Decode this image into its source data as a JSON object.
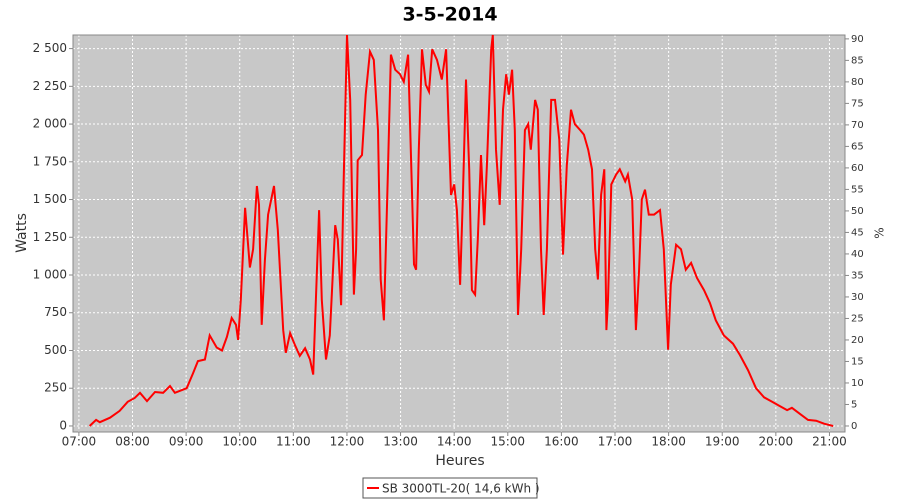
{
  "chart_data": {
    "type": "line",
    "title": "3-5-2014",
    "xlabel": "Heures",
    "ylabel": "Watts",
    "y2label": "%",
    "x": [
      7.2,
      7.32,
      7.39,
      7.58,
      7.76,
      7.91,
      8.04,
      8.14,
      8.27,
      8.42,
      8.57,
      8.7,
      8.79,
      9.01,
      9.13,
      9.22,
      9.35,
      9.44,
      9.57,
      9.67,
      9.76,
      9.85,
      9.93,
      9.97,
      10.02,
      10.1,
      10.19,
      10.25,
      10.32,
      10.36,
      10.41,
      10.47,
      10.53,
      10.64,
      10.71,
      10.81,
      10.86,
      10.94,
      11.03,
      11.12,
      11.22,
      11.31,
      11.37,
      11.4,
      11.48,
      11.53,
      11.61,
      11.68,
      11.78,
      11.83,
      11.89,
      11.94,
      12.0,
      12.06,
      12.13,
      12.17,
      12.2,
      12.28,
      12.35,
      12.43,
      12.5,
      12.58,
      12.63,
      12.69,
      12.76,
      12.82,
      12.9,
      12.99,
      13.06,
      13.14,
      13.19,
      13.25,
      13.29,
      13.34,
      13.4,
      13.47,
      13.53,
      13.59,
      13.68,
      13.77,
      13.85,
      13.94,
      14.0,
      14.05,
      14.11,
      14.16,
      14.22,
      14.28,
      14.33,
      14.39,
      14.44,
      14.5,
      14.56,
      14.61,
      14.69,
      14.72,
      14.78,
      14.85,
      14.91,
      14.97,
      15.02,
      15.08,
      15.13,
      15.19,
      15.25,
      15.32,
      15.38,
      15.43,
      15.51,
      15.56,
      15.62,
      15.67,
      15.73,
      15.81,
      15.88,
      15.96,
      16.03,
      16.1,
      16.18,
      16.25,
      16.35,
      16.42,
      16.5,
      16.57,
      16.63,
      16.68,
      16.74,
      16.8,
      16.84,
      16.87,
      16.93,
      17.02,
      17.09,
      17.19,
      17.24,
      17.32,
      17.39,
      17.45,
      17.5,
      17.56,
      17.63,
      17.73,
      17.84,
      17.91,
      17.99,
      18.04,
      18.14,
      18.23,
      18.32,
      18.42,
      18.53,
      18.66,
      18.77,
      18.88,
      19.03,
      19.2,
      19.33,
      19.48,
      19.63,
      19.78,
      19.93,
      20.08,
      20.21,
      20.3,
      20.45,
      20.6,
      20.75,
      20.9,
      21.01,
      21.07
    ],
    "series": [
      {
        "name": "SB 3000TL-20( 14,6 kWh )",
        "color": "#ff0000",
        "values": [
          0,
          40,
          25,
          55,
          100,
          160,
          185,
          220,
          165,
          225,
          220,
          265,
          220,
          250,
          350,
          430,
          440,
          600,
          520,
          500,
          590,
          715,
          670,
          570,
          835,
          1445,
          1050,
          1170,
          1590,
          1465,
          670,
          1100,
          1400,
          1590,
          1300,
          635,
          485,
          615,
          535,
          465,
          515,
          440,
          340,
          635,
          1430,
          835,
          440,
          600,
          1330,
          1235,
          800,
          1630,
          2590,
          2160,
          870,
          1170,
          1760,
          1795,
          2195,
          2480,
          2425,
          1960,
          970,
          700,
          1630,
          2460,
          2360,
          2330,
          2280,
          2460,
          1830,
          1070,
          1035,
          1830,
          2495,
          2260,
          2215,
          2495,
          2425,
          2295,
          2495,
          1530,
          1600,
          1430,
          935,
          1500,
          2295,
          1700,
          900,
          870,
          1235,
          1795,
          1330,
          1725,
          2495,
          2590,
          1830,
          1465,
          2095,
          2330,
          2195,
          2360,
          1960,
          735,
          1170,
          1960,
          2000,
          1830,
          2160,
          2095,
          1170,
          735,
          1170,
          2160,
          2160,
          1895,
          1135,
          1725,
          2095,
          2000,
          1960,
          1930,
          1830,
          1700,
          1170,
          970,
          1530,
          1700,
          635,
          835,
          1600,
          1665,
          1700,
          1620,
          1665,
          1500,
          635,
          1035,
          1500,
          1565,
          1400,
          1400,
          1430,
          1170,
          505,
          935,
          1200,
          1170,
          1035,
          1080,
          980,
          900,
          815,
          700,
          600,
          545,
          470,
          370,
          250,
          190,
          160,
          130,
          105,
          120,
          80,
          40,
          35,
          15,
          5,
          0
        ]
      }
    ],
    "xlim": [
      6.89,
      21.29
    ],
    "ylim": [
      -40,
      2590
    ],
    "y2lim": [
      -1.4,
      90.9
    ],
    "xticks": [
      {
        "value": 7,
        "label": "07:00"
      },
      {
        "value": 8,
        "label": "08:00"
      },
      {
        "value": 9,
        "label": "09:00"
      },
      {
        "value": 10,
        "label": "10:00"
      },
      {
        "value": 11,
        "label": "11:00"
      },
      {
        "value": 12,
        "label": "12:00"
      },
      {
        "value": 13,
        "label": "13:00"
      },
      {
        "value": 14,
        "label": "14:00"
      },
      {
        "value": 15,
        "label": "15:00"
      },
      {
        "value": 16,
        "label": "16:00"
      },
      {
        "value": 17,
        "label": "17:00"
      },
      {
        "value": 18,
        "label": "18:00"
      },
      {
        "value": 19,
        "label": "19:00"
      },
      {
        "value": 20,
        "label": "20:00"
      },
      {
        "value": 21,
        "label": "21:00"
      }
    ],
    "yticks": [
      0,
      250,
      500,
      750,
      {
        "value": 1000,
        "label": "1 000"
      },
      {
        "value": 1250,
        "label": "1 250"
      },
      {
        "value": 1500,
        "label": "1 500"
      },
      {
        "value": 1750,
        "label": "1 750"
      },
      {
        "value": 2000,
        "label": "2 000"
      },
      {
        "value": 2250,
        "label": "2 250"
      },
      {
        "value": 2500,
        "label": "2 500"
      }
    ],
    "y2ticks": [
      0,
      5,
      10,
      15,
      20,
      25,
      30,
      35,
      40,
      45,
      50,
      55,
      60,
      65,
      70,
      75,
      80,
      85,
      90
    ],
    "grid": true,
    "legend": "bottom"
  }
}
